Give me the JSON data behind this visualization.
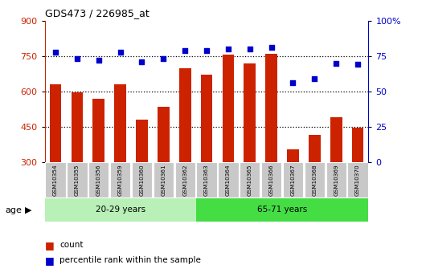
{
  "title": "GDS473 / 226985_at",
  "samples": [
    "GSM10354",
    "GSM10355",
    "GSM10356",
    "GSM10359",
    "GSM10360",
    "GSM10361",
    "GSM10362",
    "GSM10363",
    "GSM10364",
    "GSM10365",
    "GSM10366",
    "GSM10367",
    "GSM10368",
    "GSM10369",
    "GSM10370"
  ],
  "counts": [
    630,
    595,
    570,
    630,
    480,
    535,
    700,
    670,
    755,
    720,
    760,
    355,
    415,
    490,
    445
  ],
  "percentiles": [
    78,
    73,
    72,
    78,
    71,
    73,
    79,
    79,
    80,
    80,
    81,
    56,
    59,
    70,
    69
  ],
  "group1_label": "20-29 years",
  "group1_count": 7,
  "group2_label": "65-71 years",
  "group2_count": 8,
  "ylim_left": [
    300,
    900
  ],
  "ylim_right": [
    0,
    100
  ],
  "yticks_left": [
    300,
    450,
    600,
    750,
    900
  ],
  "yticks_right": [
    0,
    25,
    50,
    75,
    100
  ],
  "bar_color": "#cc2200",
  "dot_color": "#0000cc",
  "group1_bg": "#b8f0b8",
  "group2_bg": "#44dd44",
  "tick_area_color": "#c8c8c8",
  "grid_lines": [
    750,
    600,
    450
  ],
  "bar_baseline": 300,
  "bar_width": 0.55,
  "legend_count_label": "count",
  "legend_pct_label": "percentile rank within the sample"
}
